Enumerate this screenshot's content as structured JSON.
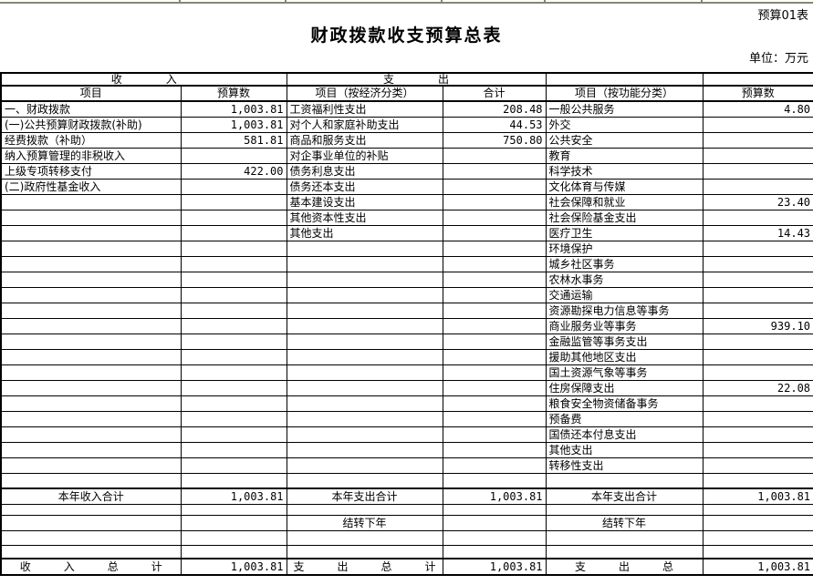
{
  "page": {
    "sheet_label": "预算01表",
    "title": "财政拨款收支预算总表",
    "unit_label": "单位：万元"
  },
  "table": {
    "header1": {
      "income_section": "收　　　　入",
      "expenditure_section": "支　　　　出"
    },
    "header2": [
      "项目",
      "预算数",
      "项目（按经济分类）",
      "合计",
      "项目（按功能分类）",
      "预算数"
    ],
    "data_row_count": 24,
    "income_items": [
      {
        "label": "一、财政拨款",
        "indent": 0,
        "value": "1,003.81"
      },
      {
        "label": "(一)公共预算财政拨款(补助)",
        "indent": 1,
        "value": "1,003.81"
      },
      {
        "label": "经费拨款（补助）",
        "indent": 2,
        "value": "581.81"
      },
      {
        "label": "纳入预算管理的非税收入",
        "indent": 2,
        "value": ""
      },
      {
        "label": "上级专项转移支付",
        "indent": 2,
        "value": "422.00"
      },
      {
        "label": "(二)政府性基金收入",
        "indent": 1,
        "value": ""
      }
    ],
    "economic_items": [
      {
        "label": "工资福利性支出",
        "value": "208.48"
      },
      {
        "label": "对个人和家庭补助支出",
        "value": "44.53"
      },
      {
        "label": "商品和服务支出",
        "value": "750.80"
      },
      {
        "label": "对企事业单位的补贴",
        "value": ""
      },
      {
        "label": "债务利息支出",
        "value": ""
      },
      {
        "label": "债务还本支出",
        "value": ""
      },
      {
        "label": "基本建设支出",
        "value": ""
      },
      {
        "label": "其他资本性支出",
        "value": ""
      },
      {
        "label": "其他支出",
        "value": ""
      }
    ],
    "functional_items": [
      {
        "label": "一般公共服务",
        "value": "4.80"
      },
      {
        "label": "外交",
        "value": ""
      },
      {
        "label": "公共安全",
        "value": ""
      },
      {
        "label": "教育",
        "value": ""
      },
      {
        "label": "科学技术",
        "value": ""
      },
      {
        "label": "文化体育与传媒",
        "value": ""
      },
      {
        "label": "社会保障和就业",
        "value": "23.40"
      },
      {
        "label": "社会保险基金支出",
        "value": ""
      },
      {
        "label": "医疗卫生",
        "value": "14.43"
      },
      {
        "label": "环境保护",
        "value": ""
      },
      {
        "label": "城乡社区事务",
        "value": ""
      },
      {
        "label": "农林水事务",
        "value": ""
      },
      {
        "label": "交通运输",
        "value": ""
      },
      {
        "label": "资源勘探电力信息等事务",
        "value": ""
      },
      {
        "label": "商业服务业等事务",
        "value": "939.10"
      },
      {
        "label": "金融监管等事务支出",
        "value": ""
      },
      {
        "label": "援助其他地区支出",
        "value": ""
      },
      {
        "label": "国土资源气象等事务",
        "value": ""
      },
      {
        "label": "住房保障支出",
        "value": "22.08"
      },
      {
        "label": "粮食安全物资储备事务",
        "value": ""
      },
      {
        "label": "预备费",
        "value": ""
      },
      {
        "label": "国债还本付息支出",
        "value": ""
      },
      {
        "label": "其他支出",
        "value": ""
      },
      {
        "label": "转移性支出",
        "value": ""
      }
    ],
    "subtotal_row": {
      "income_label": "本年收入合计",
      "income_value": "1,003.81",
      "economic_label": "本年支出合计",
      "economic_value": "1,003.81",
      "functional_label": "本年支出合计",
      "functional_value": "1,003.81"
    },
    "carryover_row": {
      "economic_label": "结转下年",
      "functional_label": "结转下年"
    },
    "grand_total_row": {
      "income_label": "收　　　入　　　总　　　计",
      "income_value": "1,003.81",
      "economic_label": "支　　　出　　　总　　　计",
      "economic_value": "1,003.81",
      "functional_label": "支　　　出　　　总",
      "functional_value": "1,003.81"
    }
  },
  "colors": {
    "grid_line": "#000000",
    "sheet_edge": "#87876e",
    "background": "#ffffff",
    "text": "#000000"
  }
}
